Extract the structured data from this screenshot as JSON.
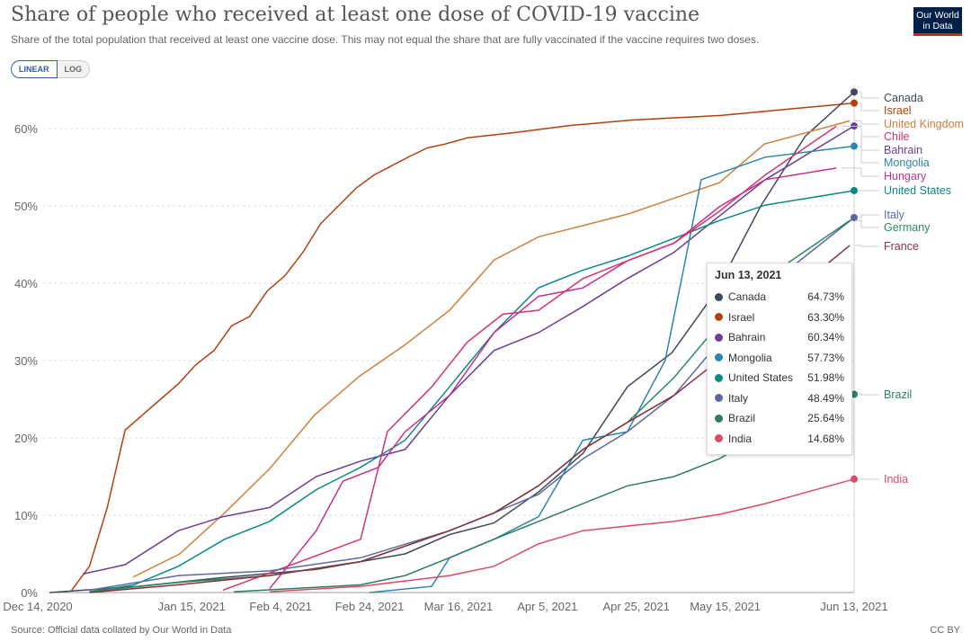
{
  "header": {
    "title": "Share of people who received at least one dose of COVID-19 vaccine",
    "subtitle": "Share of the total population that received at least one vaccine dose. This may not equal the share that are fully vaccinated if the vaccine requires two doses.",
    "logo": "Our World in Data"
  },
  "toggle": {
    "linear": "LINEAR",
    "log": "LOG"
  },
  "footer": {
    "source": "Source: Official data collated by Our World in Data",
    "license": "CC BY"
  },
  "tooltip": {
    "date": "Jun 13, 2021",
    "rows": [
      {
        "name": "Canada",
        "value": "64.73%",
        "color": "#3f4a5f"
      },
      {
        "name": "Israel",
        "value": "63.30%",
        "color": "#b5400f"
      },
      {
        "name": "Bahrain",
        "value": "60.34%",
        "color": "#6b3d99"
      },
      {
        "name": "Mongolia",
        "value": "57.73%",
        "color": "#2a86ae"
      },
      {
        "name": "United States",
        "value": "51.98%",
        "color": "#0b8a83"
      },
      {
        "name": "Italy",
        "value": "48.49%",
        "color": "#5a6aa0"
      },
      {
        "name": "Brazil",
        "value": "25.64%",
        "color": "#2f7b67"
      },
      {
        "name": "India",
        "value": "14.68%",
        "color": "#dc4a63"
      }
    ]
  },
  "chart_data": {
    "type": "line",
    "title": "Share of people who received at least one dose of COVID-19 vaccine",
    "x_ticks": [
      "Dec 14, 2020",
      "Jan 15, 2021",
      "Feb 4, 2021",
      "Feb 24, 2021",
      "Mar 16, 2021",
      "Apr 5, 2021",
      "Apr 25, 2021",
      "May 15, 2021",
      "Jun 13, 2021"
    ],
    "x_tick_days": [
      0,
      32,
      52,
      72,
      92,
      112,
      132,
      152,
      181
    ],
    "y_ticks": [
      "0%",
      "10%",
      "20%",
      "30%",
      "40%",
      "50%",
      "60%"
    ],
    "ylim": [
      0,
      65
    ],
    "xlim": [
      0,
      181
    ],
    "series": [
      {
        "name": "Israel",
        "color": "#b5400f",
        "marker": true,
        "days": [
          5,
          9,
          13,
          17,
          21,
          25,
          29,
          33,
          37,
          41,
          45,
          49,
          53,
          57,
          61,
          65,
          69,
          73,
          77,
          81,
          85,
          89,
          94,
          105,
          117,
          131,
          151,
          181
        ],
        "values": [
          0.3,
          3.4,
          11,
          21,
          23,
          25,
          27,
          29.5,
          31.3,
          34.5,
          35.7,
          39,
          41,
          44,
          47.7,
          50,
          52.3,
          54,
          55.2,
          56.4,
          57.5,
          58,
          58.8,
          59.5,
          60.4,
          61.1,
          61.7,
          63.3
        ]
      },
      {
        "name": "Canada",
        "color": "#3f4a5f",
        "marker": true,
        "days": [
          0,
          20,
          40,
          60,
          80,
          90,
          100,
          110,
          120,
          130,
          140,
          150,
          160,
          170,
          181
        ],
        "values": [
          0,
          0.8,
          2,
          3,
          5,
          7.5,
          9,
          13,
          18,
          26.6,
          31,
          39,
          50,
          59,
          64.73
        ]
      },
      {
        "name": "United Kingdom",
        "color": "#d0803e",
        "marker": false,
        "days": [
          18.8,
          29.3,
          39.4,
          49.5,
          59.7,
          69.8,
          79.9,
          90,
          100,
          110,
          120.3,
          130.4,
          140.5,
          150.7,
          160.8,
          180
        ],
        "values": [
          2,
          5,
          10.3,
          16,
          23,
          28,
          32,
          36.5,
          43,
          46,
          47.5,
          49,
          51,
          53,
          58,
          61
        ]
      },
      {
        "name": "Bahrain",
        "color": "#6b3d99",
        "marker": true,
        "days": [
          7.5,
          17,
          29,
          39,
          49.5,
          60,
          70,
          80,
          90,
          100,
          110,
          120,
          130,
          140.5,
          150.7,
          161,
          181
        ],
        "values": [
          2.4,
          3.6,
          8,
          9.8,
          11,
          15,
          17,
          18.5,
          25.5,
          31.3,
          33.6,
          37,
          40.6,
          44,
          48.7,
          53.4,
          60.34
        ]
      },
      {
        "name": "Mongolia",
        "color": "#2a86ae",
        "marker": true,
        "days": [
          72,
          86,
          90,
          100,
          110,
          120,
          130,
          138.5,
          142.6,
          146.6,
          161,
          181
        ],
        "values": [
          0,
          0.8,
          4.5,
          6.9,
          9.8,
          19.7,
          20.8,
          30,
          41.7,
          53.4,
          56.3,
          57.73
        ]
      },
      {
        "name": "United States",
        "color": "#0b8a83",
        "marker": true,
        "days": [
          9,
          19,
          29,
          39.4,
          49.5,
          60,
          70,
          80,
          90,
          100,
          110,
          120,
          130,
          140.5,
          150.7,
          161,
          181
        ],
        "values": [
          0.1,
          1,
          3.4,
          6.9,
          9.2,
          13.3,
          16.2,
          19.7,
          26.6,
          33.6,
          39.4,
          41.7,
          43.5,
          45.8,
          48.1,
          50.1,
          51.98
        ]
      },
      {
        "name": "Hungary",
        "color": "#c92e8e",
        "marker": false,
        "days": [
          49.5,
          53.6,
          60,
          66,
          74,
          80,
          90,
          100,
          110,
          120,
          130,
          140.5,
          150.7,
          161,
          177
        ],
        "values": [
          0.5,
          3.4,
          8,
          14.4,
          16.2,
          20.8,
          25.5,
          33.6,
          38.3,
          39.4,
          42.9,
          45.2,
          49.9,
          53.4,
          54.9
        ]
      },
      {
        "name": "Chile",
        "color": "#d6336f",
        "marker": false,
        "days": [
          39,
          70,
          76,
          86,
          94,
          102,
          110,
          120,
          130,
          140.5,
          150.7,
          161,
          177
        ],
        "values": [
          0.3,
          6.9,
          20.8,
          26.6,
          32.4,
          36,
          36.5,
          40.6,
          42.9,
          45.2,
          49.3,
          54,
          60.3
        ]
      },
      {
        "name": "Italy",
        "color": "#5a6aa0",
        "marker": true,
        "days": [
          9,
          29,
          49.5,
          70,
          90,
          100,
          110,
          120,
          130,
          140.5,
          150.7,
          161,
          181
        ],
        "values": [
          0.3,
          2.2,
          2.8,
          4.5,
          8,
          10.3,
          12.7,
          17.3,
          20.8,
          25.5,
          32.4,
          39.4,
          48.49
        ]
      },
      {
        "name": "Germany",
        "color": "#2c8a5e",
        "marker": false,
        "days": [
          9,
          29,
          49.5,
          70,
          90,
          100,
          110,
          120,
          130,
          140.5,
          150.7,
          161,
          180
        ],
        "values": [
          0.1,
          1.3,
          2.2,
          4,
          8,
          10.3,
          13.8,
          18.5,
          22,
          27.8,
          34.8,
          40.6,
          48.1
        ]
      },
      {
        "name": "France",
        "color": "#8b3040",
        "marker": false,
        "days": [
          9,
          29,
          49.5,
          70,
          90,
          100,
          110,
          120,
          130,
          140.5,
          150.7,
          161,
          180
        ],
        "values": [
          0,
          1,
          2.2,
          4,
          8,
          10.3,
          13.8,
          18.5,
          22,
          25.5,
          30.1,
          35.9,
          44.9
        ]
      },
      {
        "name": "Brazil",
        "color": "#2f7b67",
        "marker": true,
        "days": [
          41.5,
          70,
          80,
          90,
          100,
          110,
          120,
          130,
          140.5,
          150.7,
          161,
          181
        ],
        "values": [
          0.1,
          1,
          2.2,
          4.5,
          6.9,
          9.2,
          11.5,
          13.8,
          15,
          17.3,
          20.8,
          25.64
        ]
      },
      {
        "name": "India",
        "color": "#dc4a63",
        "marker": true,
        "days": [
          49.5,
          70,
          90,
          100,
          110,
          120,
          130,
          140.5,
          150.7,
          161,
          181
        ],
        "values": [
          0.1,
          0.8,
          2.2,
          3.4,
          6.3,
          8,
          8.6,
          9.2,
          10.1,
          11.5,
          14.68
        ]
      }
    ]
  }
}
